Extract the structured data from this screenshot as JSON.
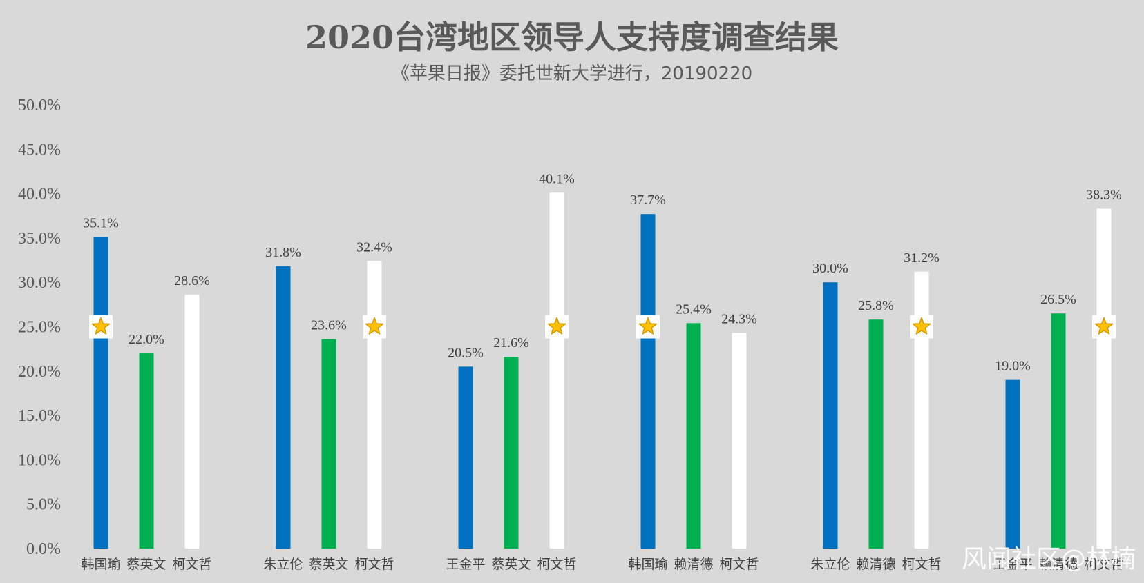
{
  "chart_data": {
    "type": "bar",
    "title": "2020台湾地区领导人支持度调查结果",
    "subtitle": "《苹果日报》委托世新大学进行，20190220",
    "ylim": [
      0,
      50
    ],
    "yticks": [
      "0.0%",
      "5.0%",
      "10.0%",
      "15.0%",
      "20.0%",
      "25.0%",
      "30.0%",
      "35.0%",
      "40.0%",
      "45.0%",
      "50.0%"
    ],
    "grid": false,
    "legend": "none",
    "colors": {
      "blue": "#0070c0",
      "green": "#00b050",
      "white": "#ffffff"
    },
    "groups": [
      {
        "bars": [
          {
            "name": "韩国瑜",
            "value": 35.1,
            "label": "35.1%",
            "color": "blue",
            "star": true
          },
          {
            "name": "蔡英文",
            "value": 22.0,
            "label": "22.0%",
            "color": "green",
            "star": false
          },
          {
            "name": "柯文哲",
            "value": 28.6,
            "label": "28.6%",
            "color": "white",
            "star": false
          }
        ]
      },
      {
        "bars": [
          {
            "name": "朱立伦",
            "value": 31.8,
            "label": "31.8%",
            "color": "blue",
            "star": false
          },
          {
            "name": "蔡英文",
            "value": 23.6,
            "label": "23.6%",
            "color": "green",
            "star": false
          },
          {
            "name": "柯文哲",
            "value": 32.4,
            "label": "32.4%",
            "color": "white",
            "star": true
          }
        ]
      },
      {
        "bars": [
          {
            "name": "王金平",
            "value": 20.5,
            "label": "20.5%",
            "color": "blue",
            "star": false
          },
          {
            "name": "蔡英文",
            "value": 21.6,
            "label": "21.6%",
            "color": "green",
            "star": false
          },
          {
            "name": "柯文哲",
            "value": 40.1,
            "label": "40.1%",
            "color": "white",
            "star": true
          }
        ]
      },
      {
        "bars": [
          {
            "name": "韩国瑜",
            "value": 37.7,
            "label": "37.7%",
            "color": "blue",
            "star": true
          },
          {
            "name": "赖清德",
            "value": 25.4,
            "label": "25.4%",
            "color": "green",
            "star": false
          },
          {
            "name": "柯文哲",
            "value": 24.3,
            "label": "24.3%",
            "color": "white",
            "star": false
          }
        ]
      },
      {
        "bars": [
          {
            "name": "朱立伦",
            "value": 30.0,
            "label": "30.0%",
            "color": "blue",
            "star": false
          },
          {
            "name": "赖清德",
            "value": 25.8,
            "label": "25.8%",
            "color": "green",
            "star": false
          },
          {
            "name": "柯文哲",
            "value": 31.2,
            "label": "31.2%",
            "color": "white",
            "star": true
          }
        ]
      },
      {
        "bars": [
          {
            "name": "王金平",
            "value": 19.0,
            "label": "19.0%",
            "color": "blue",
            "star": false
          },
          {
            "name": "赖清德",
            "value": 26.5,
            "label": "26.5%",
            "color": "green",
            "star": false
          },
          {
            "name": "柯文哲",
            "value": 38.3,
            "label": "38.3%",
            "color": "white",
            "star": true
          }
        ]
      }
    ],
    "star_value": 25.0,
    "star_icon": "star-icon"
  },
  "watermark": "风闻社区@林楠"
}
